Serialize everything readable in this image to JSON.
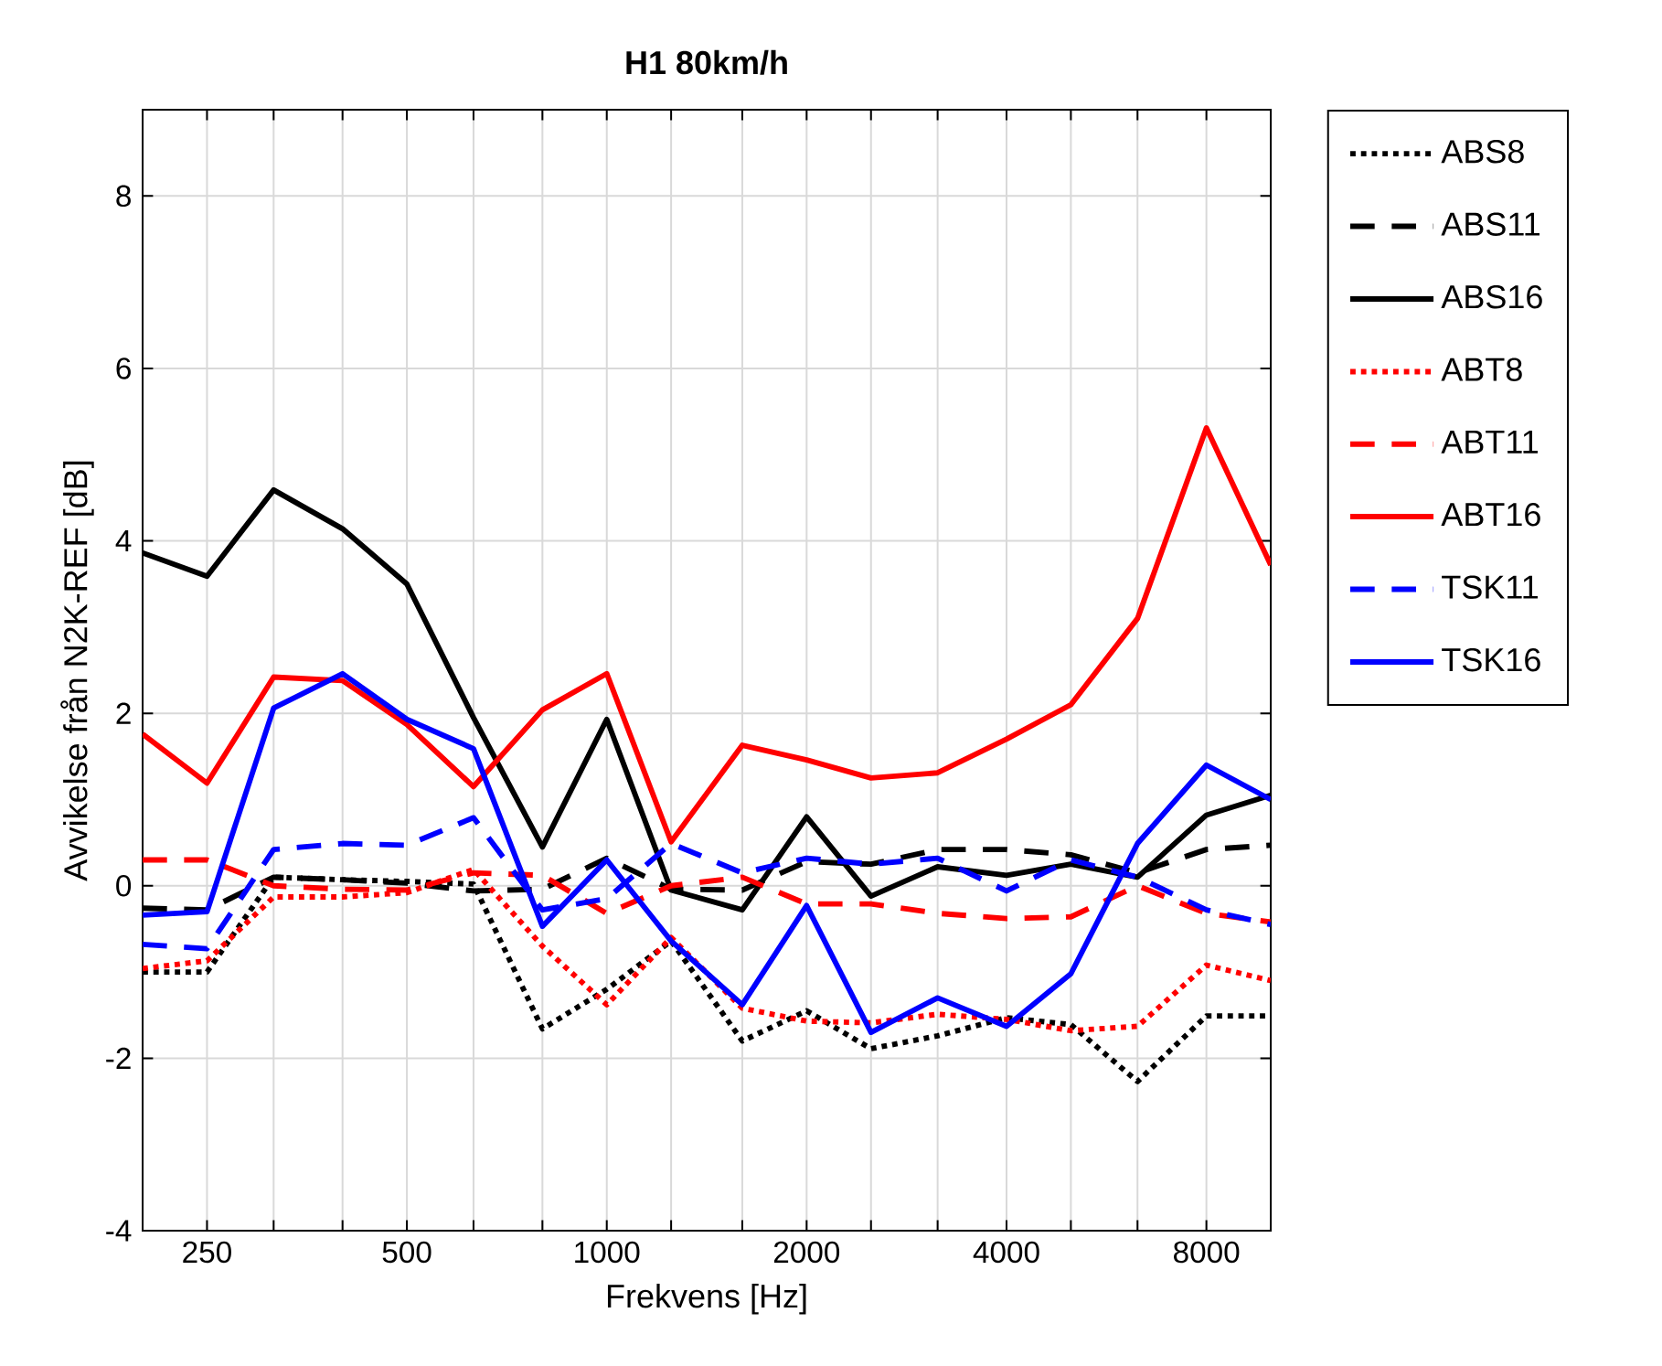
{
  "chart_data": {
    "type": "line",
    "title": "H1 80km/h",
    "xlabel": "Frekvens [Hz]",
    "ylabel": "Avvikelse från N2K-REF [dB]",
    "x": [
      200,
      250,
      315,
      400,
      500,
      630,
      800,
      1000,
      1250,
      1600,
      2000,
      2500,
      3150,
      4000,
      5000,
      6300,
      8000,
      10000
    ],
    "log": "x",
    "xlim": [
      200,
      10000
    ],
    "xticks": [
      250,
      {
        "value": 315,
        "label": null
      },
      {
        "value": 400,
        "label": null
      },
      500,
      {
        "value": 630,
        "label": null
      },
      {
        "value": 800,
        "label": null
      },
      1000,
      {
        "value": 1250,
        "label": null
      },
      {
        "value": 1600,
        "label": null
      },
      2000,
      {
        "value": 2500,
        "label": null
      },
      {
        "value": 3150,
        "label": null
      },
      4000,
      {
        "value": 5000,
        "label": null
      },
      {
        "value": 6300,
        "label": null
      },
      8000
    ],
    "ylim": [
      -4,
      9
    ],
    "yticks": [
      -4,
      -2,
      0,
      2,
      4,
      6,
      8
    ],
    "grid": true,
    "legend": "right",
    "series": [
      {
        "name": "ABS8",
        "color": "#000000",
        "line_style": "dotted",
        "values": [
          -1.0,
          -1.0,
          0.1,
          0.07,
          0.05,
          0.02,
          -1.66,
          -1.2,
          -0.64,
          -1.8,
          -1.45,
          -1.89,
          -1.74,
          -1.53,
          -1.61,
          -2.27,
          -1.51,
          -1.51
        ]
      },
      {
        "name": "ABS11",
        "color": "#000000",
        "line_style": "dashed",
        "values": [
          -0.26,
          -0.28,
          0.1,
          0.07,
          0.03,
          -0.06,
          -0.04,
          0.32,
          -0.04,
          -0.05,
          0.28,
          0.25,
          0.42,
          0.42,
          0.36,
          0.15,
          0.42,
          0.47
        ]
      },
      {
        "name": "ABS16",
        "color": "#000000",
        "line_style": "solid",
        "values": [
          3.86,
          3.59,
          4.59,
          4.14,
          3.5,
          1.95,
          0.45,
          1.93,
          -0.05,
          -0.28,
          0.8,
          -0.12,
          0.22,
          0.12,
          0.25,
          0.1,
          0.82,
          1.05
        ]
      },
      {
        "name": "ABT8",
        "color": "#ff0000",
        "line_style": "dotted",
        "values": [
          -0.96,
          -0.87,
          -0.13,
          -0.13,
          -0.08,
          0.19,
          -0.7,
          -1.38,
          -0.6,
          -1.42,
          -1.57,
          -1.59,
          -1.49,
          -1.55,
          -1.68,
          -1.63,
          -0.92,
          -1.1
        ]
      },
      {
        "name": "ABT11",
        "color": "#ff0000",
        "line_style": "dashed",
        "values": [
          0.3,
          0.3,
          0.0,
          -0.04,
          -0.05,
          0.15,
          0.12,
          -0.32,
          0.0,
          0.1,
          -0.21,
          -0.21,
          -0.32,
          -0.38,
          -0.36,
          0.0,
          -0.32,
          -0.42
        ]
      },
      {
        "name": "ABT16",
        "color": "#ff0000",
        "line_style": "solid",
        "values": [
          1.76,
          1.19,
          2.42,
          2.38,
          1.87,
          1.15,
          2.04,
          2.46,
          0.51,
          1.63,
          1.46,
          1.25,
          1.31,
          1.7,
          2.1,
          3.1,
          5.31,
          3.72
        ]
      },
      {
        "name": "TSK11",
        "color": "#0000ff",
        "line_style": "dashed",
        "values": [
          -0.68,
          -0.73,
          0.42,
          0.49,
          0.47,
          0.79,
          -0.28,
          -0.15,
          0.49,
          0.15,
          0.32,
          0.25,
          0.32,
          -0.06,
          0.3,
          0.1,
          -0.28,
          -0.45
        ]
      },
      {
        "name": "TSK16",
        "color": "#0000ff",
        "line_style": "solid",
        "values": [
          -0.34,
          -0.3,
          2.06,
          2.46,
          1.93,
          1.59,
          -0.47,
          0.3,
          -0.64,
          -1.38,
          -0.23,
          -1.7,
          -1.3,
          -1.63,
          -1.02,
          0.49,
          1.4,
          1.0
        ]
      }
    ]
  }
}
